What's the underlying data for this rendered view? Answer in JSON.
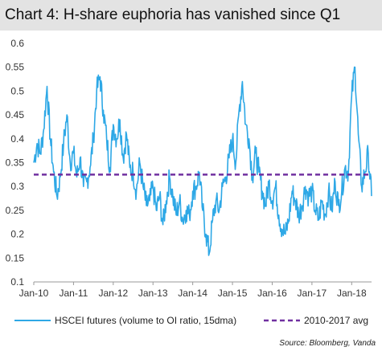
{
  "chart_data": {
    "type": "line",
    "title": "Chart 4: H-share euphoria has vanished since Q1",
    "xlabel": "",
    "ylabel": "",
    "x_range": [
      "2010-01",
      "2018-07"
    ],
    "x_ticks": [
      "Jan-10",
      "Jan-11",
      "Jan-12",
      "Jan-13",
      "Jan-14",
      "Jan-15",
      "Jan-16",
      "Jan-17",
      "Jan-18"
    ],
    "ylim": [
      0.1,
      0.6
    ],
    "y_ticks": [
      "0.1",
      "0.15",
      "0.2",
      "0.25",
      "0.3",
      "0.35",
      "0.4",
      "0.45",
      "0.5",
      "0.55",
      "0.6"
    ],
    "grid": false,
    "legend_position": "bottom",
    "series": [
      {
        "name": "HSCEI futures (volume to OI ratio, 15dma)",
        "color": "#2ea8e6",
        "style": "solid",
        "points": [
          [
            "2010-01",
            0.35
          ],
          [
            "2010-02",
            0.39
          ],
          [
            "2010-03",
            0.37
          ],
          [
            "2010-04",
            0.42
          ],
          [
            "2010-05",
            0.51
          ],
          [
            "2010-06",
            0.4
          ],
          [
            "2010-07",
            0.33
          ],
          [
            "2010-08",
            0.28
          ],
          [
            "2010-09",
            0.32
          ],
          [
            "2010-10",
            0.39
          ],
          [
            "2010-11",
            0.45
          ],
          [
            "2010-12",
            0.35
          ],
          [
            "2011-01",
            0.37
          ],
          [
            "2011-02",
            0.32
          ],
          [
            "2011-03",
            0.36
          ],
          [
            "2011-04",
            0.3
          ],
          [
            "2011-05",
            0.31
          ],
          [
            "2011-06",
            0.34
          ],
          [
            "2011-07",
            0.4
          ],
          [
            "2011-08",
            0.5
          ],
          [
            "2011-09",
            0.53
          ],
          [
            "2011-10",
            0.46
          ],
          [
            "2011-11",
            0.4
          ],
          [
            "2011-12",
            0.34
          ],
          [
            "2012-01",
            0.43
          ],
          [
            "2012-02",
            0.4
          ],
          [
            "2012-03",
            0.44
          ],
          [
            "2012-04",
            0.36
          ],
          [
            "2012-05",
            0.41
          ],
          [
            "2012-06",
            0.34
          ],
          [
            "2012-07",
            0.33
          ],
          [
            "2012-08",
            0.29
          ],
          [
            "2012-09",
            0.35
          ],
          [
            "2012-10",
            0.3
          ],
          [
            "2012-11",
            0.26
          ],
          [
            "2012-12",
            0.27
          ],
          [
            "2013-01",
            0.3
          ],
          [
            "2013-02",
            0.25
          ],
          [
            "2013-03",
            0.28
          ],
          [
            "2013-04",
            0.22
          ],
          [
            "2013-05",
            0.27
          ],
          [
            "2013-06",
            0.32
          ],
          [
            "2013-07",
            0.28
          ],
          [
            "2013-08",
            0.24
          ],
          [
            "2013-09",
            0.27
          ],
          [
            "2013-10",
            0.23
          ],
          [
            "2013-11",
            0.25
          ],
          [
            "2013-12",
            0.24
          ],
          [
            "2014-01",
            0.29
          ],
          [
            "2014-02",
            0.3
          ],
          [
            "2014-03",
            0.33
          ],
          [
            "2014-04",
            0.25
          ],
          [
            "2014-05",
            0.2
          ],
          [
            "2014-06",
            0.16
          ],
          [
            "2014-07",
            0.23
          ],
          [
            "2014-08",
            0.27
          ],
          [
            "2014-09",
            0.25
          ],
          [
            "2014-10",
            0.3
          ],
          [
            "2014-11",
            0.32
          ],
          [
            "2014-12",
            0.36
          ],
          [
            "2015-01",
            0.4
          ],
          [
            "2015-02",
            0.35
          ],
          [
            "2015-03",
            0.46
          ],
          [
            "2015-04",
            0.52
          ],
          [
            "2015-05",
            0.43
          ],
          [
            "2015-06",
            0.4
          ],
          [
            "2015-07",
            0.32
          ],
          [
            "2015-08",
            0.37
          ],
          [
            "2015-09",
            0.33
          ],
          [
            "2015-10",
            0.29
          ],
          [
            "2015-11",
            0.26
          ],
          [
            "2015-12",
            0.31
          ],
          [
            "2016-01",
            0.27
          ],
          [
            "2016-02",
            0.3
          ],
          [
            "2016-03",
            0.24
          ],
          [
            "2016-04",
            0.21
          ],
          [
            "2016-05",
            0.2
          ],
          [
            "2016-06",
            0.23
          ],
          [
            "2016-07",
            0.29
          ],
          [
            "2016-08",
            0.27
          ],
          [
            "2016-09",
            0.24
          ],
          [
            "2016-10",
            0.26
          ],
          [
            "2016-11",
            0.3
          ],
          [
            "2016-12",
            0.28
          ],
          [
            "2017-01",
            0.29
          ],
          [
            "2017-02",
            0.25
          ],
          [
            "2017-03",
            0.23
          ],
          [
            "2017-04",
            0.27
          ],
          [
            "2017-05",
            0.24
          ],
          [
            "2017-06",
            0.29
          ],
          [
            "2017-07",
            0.25
          ],
          [
            "2017-08",
            0.31
          ],
          [
            "2017-09",
            0.26
          ],
          [
            "2017-10",
            0.29
          ],
          [
            "2017-11",
            0.34
          ],
          [
            "2017-12",
            0.33
          ],
          [
            "2018-01",
            0.49
          ],
          [
            "2018-02",
            0.55
          ],
          [
            "2018-03",
            0.41
          ],
          [
            "2018-04",
            0.3
          ],
          [
            "2018-05",
            0.33
          ],
          [
            "2018-06",
            0.37
          ],
          [
            "2018-07",
            0.28
          ]
        ]
      },
      {
        "name": "2010-2017 avg",
        "color": "#7030a0",
        "style": "dashed",
        "value": 0.325
      }
    ],
    "source": "Source: Bloomberg, Vanda"
  }
}
